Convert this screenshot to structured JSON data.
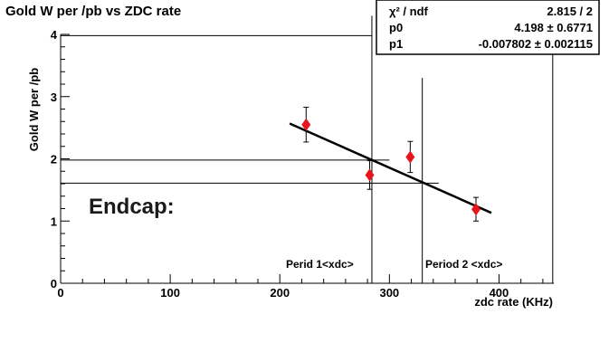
{
  "chart_data": {
    "type": "scatter",
    "title": "Gold W per /pb vs ZDC rate",
    "xlabel": "zdc rate (KHz)",
    "ylabel": "Gold W per /pb",
    "xlim": [
      0,
      450
    ],
    "ylim": [
      0,
      4
    ],
    "x_ticks": [
      "0",
      "100",
      "200",
      "300",
      "400"
    ],
    "y_ticks": [
      "0",
      "1",
      "2",
      "3",
      "4"
    ],
    "x_tick_values": [
      0,
      100,
      200,
      300,
      400
    ],
    "y_tick_values": [
      0,
      1,
      2,
      3,
      4
    ],
    "grid": false,
    "points": [
      {
        "x": 224,
        "y": 2.55,
        "yerr": 0.28
      },
      {
        "x": 282,
        "y": 1.74,
        "yerr": 0.23
      },
      {
        "x": 319,
        "y": 2.03,
        "yerr": 0.25
      },
      {
        "x": 379,
        "y": 1.19,
        "yerr": 0.19
      }
    ],
    "fit": {
      "x_range": [
        209,
        393
      ],
      "p0": 4.198,
      "p1": -0.007802
    },
    "stats_box": {
      "rows": [
        {
          "label": "χ² / ndf",
          "value": "2.815 / 2"
        },
        {
          "label": "p0",
          "value": "4.198 ± 0.6771"
        },
        {
          "label": "p1",
          "value": "-0.007802 ± 0.002115"
        }
      ]
    },
    "annotations": {
      "endcap": "Endcap:",
      "period1": "Perid 1<xdc>",
      "period2": "Period 2 <xdc>"
    },
    "reference_lines": {
      "horizontal": [
        {
          "y": 3.98,
          "x_range": [
            0,
            284
          ]
        },
        {
          "y": 1.98,
          "x_range": [
            0,
            300
          ]
        },
        {
          "y": 1.61,
          "x_range": [
            0,
            345
          ]
        }
      ],
      "vertical": [
        {
          "x": 284,
          "y_range": [
            0,
            4.3
          ]
        },
        {
          "x": 330,
          "y_range": [
            0,
            3.3
          ]
        },
        {
          "x": 449,
          "y_range": [
            0,
            4.3
          ]
        }
      ]
    },
    "colors": {
      "marker": "#e8141b",
      "fit_line": "#000000",
      "axis": "#000000"
    }
  }
}
